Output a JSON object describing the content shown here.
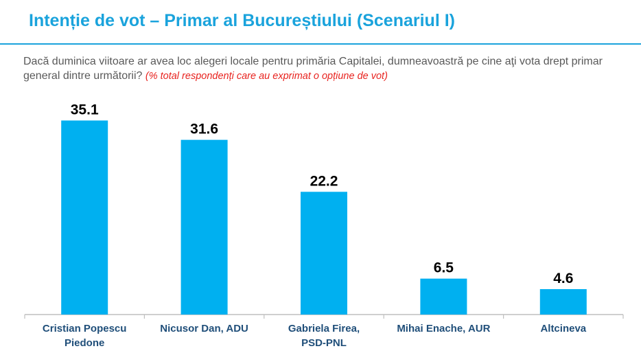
{
  "title": "Intenție de vot – Primar al Bucureștiului (Scenariul I)",
  "question_text": "Dacă duminica viitoare ar avea loc alegeri locale pentru primăria Capitalei,  dumneavoastră pe cine aţi vota drept primar general dintre următorii?",
  "question_note": "(% total respondenți care au exprimat o opțiune de vot)",
  "colors": {
    "title": "#1aa3dc",
    "bar": "#00b0f0",
    "note": "#e8231f",
    "category_label": "#1f4e79"
  },
  "chart_data": {
    "type": "bar",
    "categories": [
      "Cristian Popescu\nPiedone",
      "Nicusor Dan, ADU",
      "Gabriela Firea,\nPSD-PNL",
      "Mihai Enache, AUR",
      "Altcineva"
    ],
    "values": [
      35.1,
      31.6,
      22.2,
      6.5,
      4.6
    ],
    "ylim": [
      0,
      40
    ],
    "grid": false,
    "legend": "none"
  }
}
